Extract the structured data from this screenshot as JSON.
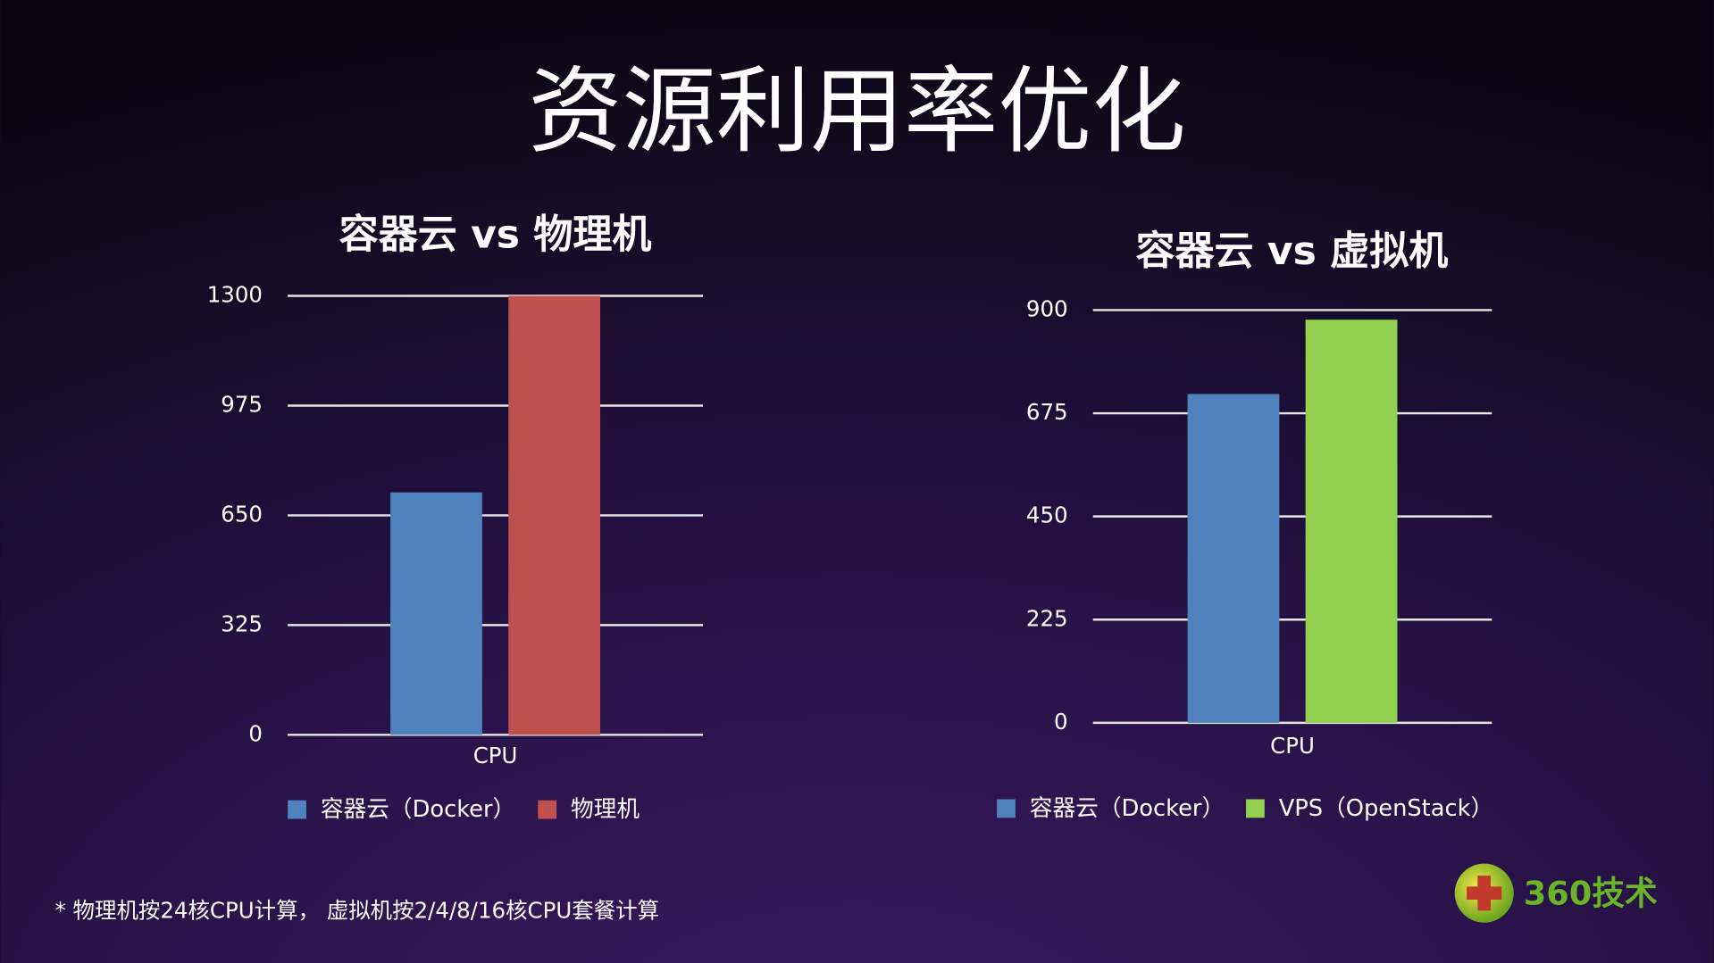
{
  "title": "资源利用率优化",
  "chart_data": [
    {
      "type": "bar",
      "title": "容器云 vs 物理机",
      "categories": [
        "CPU"
      ],
      "series": [
        {
          "name": "容器云（Docker）",
          "color": "#4f81bd",
          "values": [
            718
          ]
        },
        {
          "name": "物理机",
          "color": "#c0504d",
          "values": [
            1300
          ]
        }
      ],
      "ylim": [
        0,
        1300
      ],
      "yticks": [
        0,
        325,
        650,
        975,
        1300
      ],
      "grid": true,
      "legend": "bottom"
    },
    {
      "type": "bar",
      "title": "容器云 vs 虚拟机",
      "categories": [
        "CPU"
      ],
      "series": [
        {
          "name": "容器云（Docker）",
          "color": "#4f81bd",
          "values": [
            717
          ]
        },
        {
          "name": "VPS（OpenStack）",
          "color": "#92d050",
          "values": [
            879
          ]
        }
      ],
      "ylim": [
        0,
        900
      ],
      "yticks": [
        0,
        225,
        450,
        675,
        900
      ],
      "grid": true,
      "legend": "bottom"
    }
  ],
  "footnote": "* 物理机按24核CPU计算， 虚拟机按2/4/8/16核CPU套餐计算",
  "logo": "360技术"
}
